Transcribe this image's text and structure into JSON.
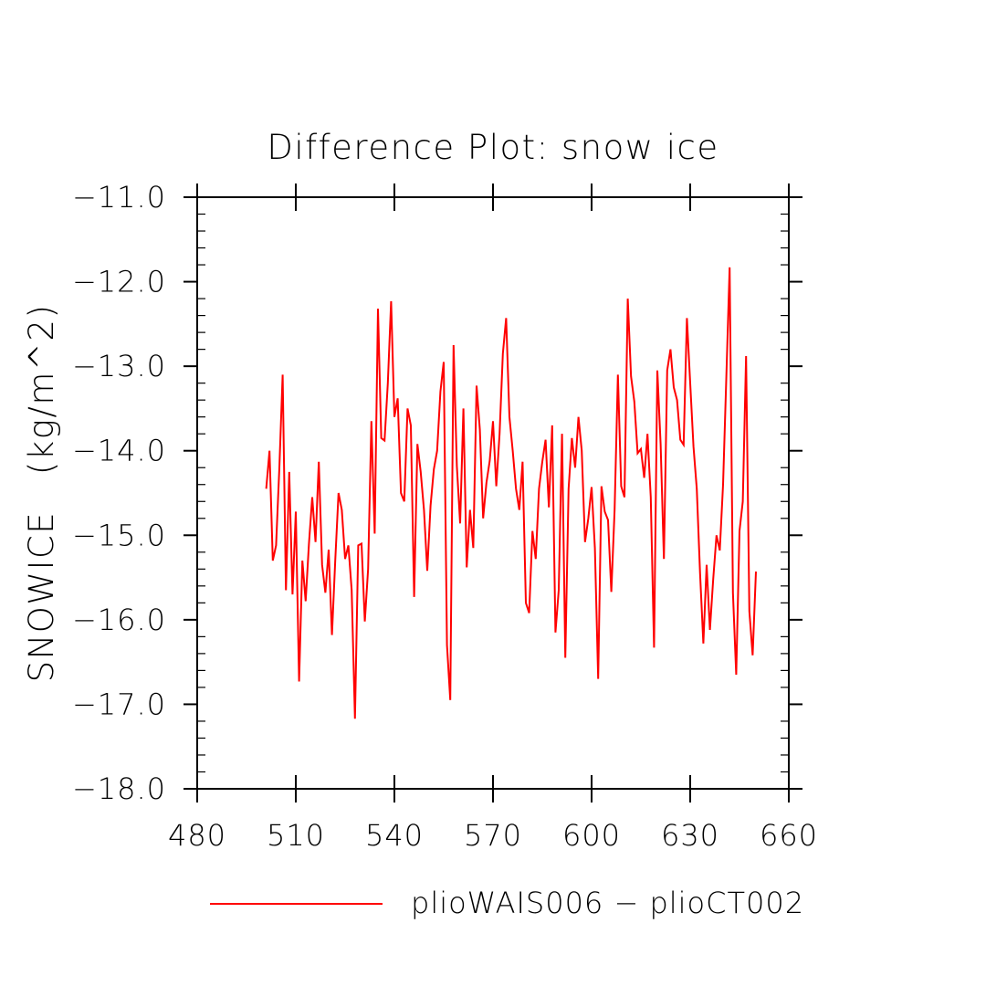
{
  "chart_data": {
    "type": "line",
    "title": "Difference Plot: snow ice",
    "xlabel": "",
    "ylabel": "SNOWICE   (kg/m^2)",
    "xlim": [
      480,
      660
    ],
    "ylim": [
      -18.0,
      -11.0
    ],
    "xticks": [
      480,
      510,
      540,
      570,
      600,
      630,
      660
    ],
    "xtick_labels": [
      "480",
      "510",
      "540",
      "570",
      "600",
      "630",
      "660"
    ],
    "yticks": [
      -11.0,
      -12.0,
      -13.0,
      -14.0,
      -15.0,
      -16.0,
      -17.0,
      -18.0
    ],
    "ytick_labels": [
      "−11.0",
      "−12.0",
      "−13.0",
      "−14.0",
      "−15.0",
      "−16.0",
      "−17.0",
      "−18.0"
    ],
    "grid": false,
    "legend": "bottom",
    "series": [
      {
        "name": "plioWAIS006 − plioCT002",
        "color": "#ff0000",
        "x": [
          501,
          502,
          503,
          504,
          505,
          506,
          507,
          508,
          509,
          510,
          511,
          512,
          513,
          514,
          515,
          516,
          517,
          518,
          519,
          520,
          521,
          522,
          523,
          524,
          525,
          526,
          527,
          528,
          529,
          530,
          531,
          532,
          533,
          534,
          535,
          536,
          537,
          538,
          539,
          540,
          541,
          542,
          543,
          544,
          545,
          546,
          547,
          548,
          549,
          550,
          551,
          552,
          553,
          554,
          555,
          556,
          557,
          558,
          559,
          560,
          561,
          562,
          563,
          564,
          565,
          566,
          567,
          568,
          569,
          570,
          571,
          572,
          573,
          574,
          575,
          576,
          577,
          578,
          579,
          580,
          581,
          582,
          583,
          584,
          585,
          586,
          587,
          588,
          589,
          590,
          591,
          592,
          593,
          594,
          595,
          596,
          597,
          598,
          599,
          600,
          601,
          602,
          603,
          604,
          605,
          606,
          607,
          608,
          609,
          610,
          611,
          612,
          613,
          614,
          615,
          616,
          617,
          618,
          619,
          620,
          621,
          622,
          623,
          624,
          625,
          626,
          627,
          628,
          629,
          630,
          631,
          632,
          633,
          634,
          635,
          636,
          637,
          638,
          639,
          640,
          641,
          642,
          643,
          644,
          645,
          646,
          647,
          648,
          649,
          650
        ],
        "values": [
          -14.45,
          -14.0,
          -15.3,
          -15.12,
          -14.2,
          -13.1,
          -15.65,
          -14.25,
          -15.7,
          -14.72,
          -16.73,
          -15.3,
          -15.78,
          -15.1,
          -14.55,
          -15.08,
          -14.13,
          -15.35,
          -15.68,
          -15.17,
          -16.18,
          -15.3,
          -14.5,
          -14.7,
          -15.28,
          -15.12,
          -15.65,
          -17.17,
          -15.12,
          -15.1,
          -16.02,
          -15.4,
          -13.65,
          -14.98,
          -12.32,
          -13.85,
          -13.88,
          -13.2,
          -12.23,
          -13.6,
          -13.38,
          -14.5,
          -14.6,
          -13.5,
          -13.7,
          -15.73,
          -13.92,
          -14.25,
          -14.7,
          -15.42,
          -14.65,
          -14.22,
          -14.0,
          -13.3,
          -12.95,
          -16.3,
          -16.95,
          -12.75,
          -14.18,
          -14.86,
          -13.5,
          -15.38,
          -14.7,
          -15.15,
          -13.23,
          -13.75,
          -14.8,
          -14.38,
          -14.12,
          -13.65,
          -14.42,
          -13.8,
          -12.85,
          -12.43,
          -13.6,
          -14.0,
          -14.45,
          -14.7,
          -14.13,
          -15.8,
          -15.92,
          -14.95,
          -15.28,
          -14.45,
          -14.13,
          -13.87,
          -14.67,
          -13.7,
          -16.15,
          -15.65,
          -13.8,
          -16.45,
          -14.45,
          -13.85,
          -14.2,
          -13.6,
          -14.0,
          -15.08,
          -14.8,
          -14.43,
          -15.15,
          -16.7,
          -14.42,
          -14.72,
          -14.82,
          -15.67,
          -14.7,
          -13.1,
          -14.42,
          -14.55,
          -12.2,
          -13.12,
          -13.42,
          -14.03,
          -13.98,
          -14.32,
          -13.8,
          -14.55,
          -16.33,
          -13.05,
          -13.92,
          -15.28,
          -13.05,
          -12.8,
          -13.25,
          -13.4,
          -13.87,
          -13.93,
          -12.43,
          -13.2,
          -13.95,
          -14.45,
          -15.45,
          -16.28,
          -15.35,
          -16.12,
          -15.52,
          -15.0,
          -15.18,
          -14.4,
          -13.12,
          -11.83,
          -15.68,
          -16.65,
          -14.95,
          -14.6,
          -12.88,
          -15.9,
          -16.42,
          -15.43
        ]
      }
    ]
  }
}
